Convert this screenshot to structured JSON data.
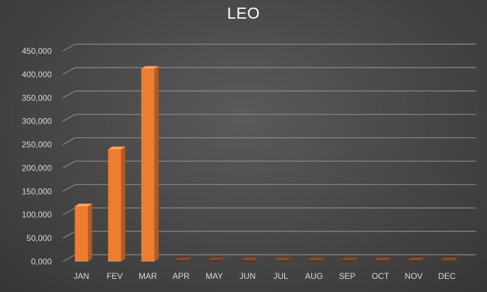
{
  "chart_data": {
    "type": "bar",
    "title": "LEO",
    "categories": [
      "JAN",
      "FEV",
      "MAR",
      "APR",
      "MAY",
      "JUN",
      "JUL",
      "AUG",
      "SEP",
      "OCT",
      "NOV",
      "DEC"
    ],
    "values": [
      118000,
      240000,
      412000,
      0,
      0,
      0,
      0,
      0,
      0,
      0,
      0,
      0
    ],
    "ylim": [
      0,
      450000
    ],
    "y_ticks": [
      "0,000",
      "50,000",
      "100,000",
      "150,000",
      "200,000",
      "250,000",
      "300,000",
      "350,000",
      "400,000",
      "450,000"
    ],
    "grid": true,
    "legend": "none",
    "style_3d": true
  },
  "colors": {
    "bar_front": "#ed7d31",
    "bar_side": "#b35a1f",
    "bar_top": "#f4a46b",
    "gridline": "#8c8c8c",
    "text": "#d9d9d9",
    "title": "#ffffff"
  }
}
